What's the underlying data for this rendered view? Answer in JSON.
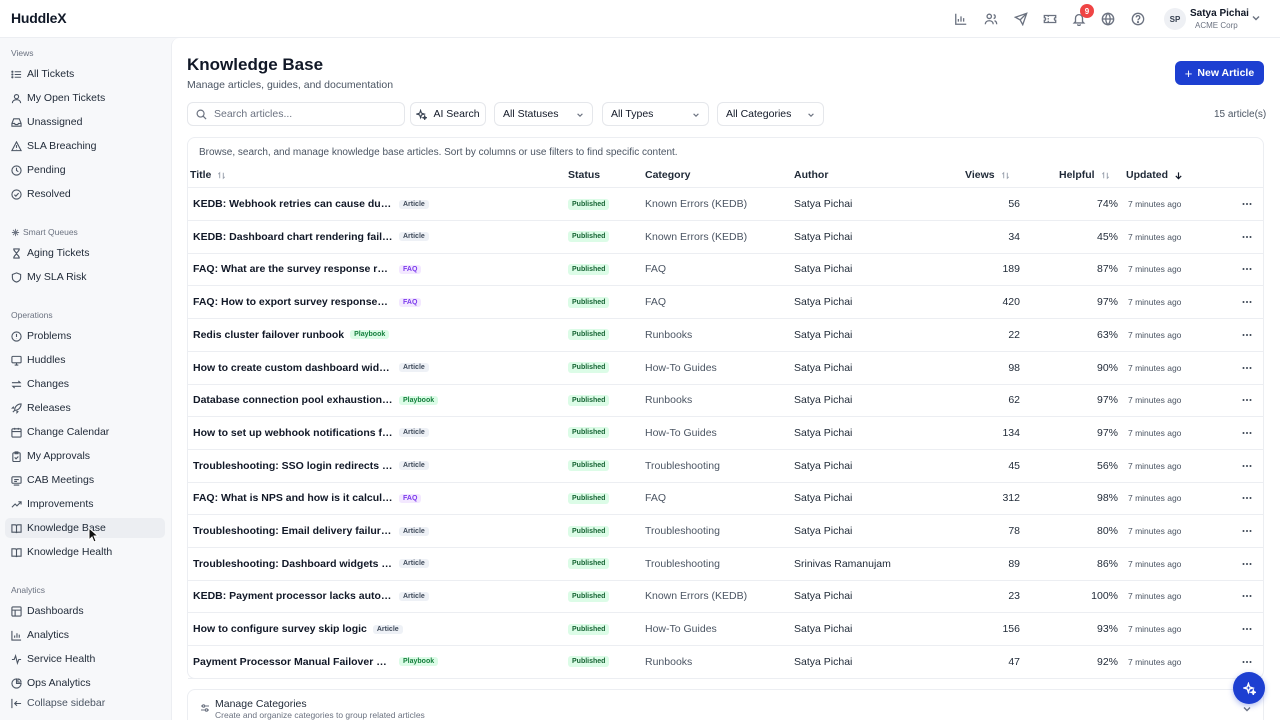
{
  "app": {
    "name": "HuddleX"
  },
  "topbar": {
    "notification_count": "9",
    "user": {
      "initials": "SP",
      "name": "Satya Pichai",
      "org": "ACME Corp"
    }
  },
  "sidebar": {
    "sections": [
      {
        "label": "Views",
        "items": [
          {
            "label": "All Tickets",
            "icon": "list-icon"
          },
          {
            "label": "My Open Tickets",
            "icon": "user-icon"
          },
          {
            "label": "Unassigned",
            "icon": "inbox-icon"
          },
          {
            "label": "SLA Breaching",
            "icon": "alert-icon"
          },
          {
            "label": "Pending",
            "icon": "clock-icon"
          },
          {
            "label": "Resolved",
            "icon": "check-circle-icon"
          }
        ]
      },
      {
        "label": "Smart Queues",
        "items": [
          {
            "label": "Aging Tickets",
            "icon": "hourglass-icon"
          },
          {
            "label": "My SLA Risk",
            "icon": "shield-icon"
          }
        ]
      },
      {
        "label": "Operations",
        "items": [
          {
            "label": "Problems",
            "icon": "problem-icon"
          },
          {
            "label": "Huddles",
            "icon": "monitor-icon"
          },
          {
            "label": "Changes",
            "icon": "swap-icon"
          },
          {
            "label": "Releases",
            "icon": "rocket-icon"
          },
          {
            "label": "Change Calendar",
            "icon": "calendar-icon"
          },
          {
            "label": "My Approvals",
            "icon": "clipboard-icon"
          },
          {
            "label": "CAB Meetings",
            "icon": "meeting-icon"
          },
          {
            "label": "Improvements",
            "icon": "trend-up-icon"
          },
          {
            "label": "Knowledge Base",
            "icon": "book-icon"
          },
          {
            "label": "Knowledge Health",
            "icon": "book-heart-icon"
          }
        ]
      },
      {
        "label": "Analytics",
        "items": [
          {
            "label": "Dashboards",
            "icon": "dashboard-icon"
          },
          {
            "label": "Analytics",
            "icon": "bar-chart-icon"
          },
          {
            "label": "Service Health",
            "icon": "activity-icon"
          },
          {
            "label": "Ops Analytics",
            "icon": "pie-icon"
          }
        ]
      }
    ],
    "active_item": "Knowledge Base",
    "collapse_label": "Collapse sidebar"
  },
  "page": {
    "title": "Knowledge Base",
    "subtitle": "Manage articles, guides, and documentation",
    "new_button": "New Article"
  },
  "toolbar": {
    "search_placeholder": "Search articles...",
    "ai_search": "AI Search",
    "filters": [
      "All Statuses",
      "All Types",
      "All Categories"
    ],
    "count": "15 article(s)"
  },
  "table": {
    "description": "Browse, search, and manage knowledge base articles. Sort by columns or use filters to find specific content.",
    "columns": [
      "Title",
      "Status",
      "Category",
      "Author",
      "Views",
      "Helpful",
      "Updated"
    ],
    "rows": [
      {
        "title": "KEDB: Webhook retries can cause duplicate events",
        "type": "Article",
        "status": "Published",
        "category": "Known Errors (KEDB)",
        "author": "Satya Pichai",
        "views": "56",
        "helpful": "74%",
        "updated": "7 minutes ago"
      },
      {
        "title": "KEDB: Dashboard chart rendering fails on large datasets",
        "type": "Article",
        "status": "Published",
        "category": "Known Errors (KEDB)",
        "author": "Satya Pichai",
        "views": "34",
        "helpful": "45%",
        "updated": "7 minutes ago"
      },
      {
        "title": "FAQ: What are the survey response rate benchmarks?",
        "type": "FAQ",
        "status": "Published",
        "category": "FAQ",
        "author": "Satya Pichai",
        "views": "189",
        "helpful": "87%",
        "updated": "7 minutes ago"
      },
      {
        "title": "FAQ: How to export survey responses to CSV?",
        "type": "FAQ",
        "status": "Published",
        "category": "FAQ",
        "author": "Satya Pichai",
        "views": "420",
        "helpful": "97%",
        "updated": "7 minutes ago"
      },
      {
        "title": "Redis cluster failover runbook",
        "type": "Playbook",
        "status": "Published",
        "category": "Runbooks",
        "author": "Satya Pichai",
        "views": "22",
        "helpful": "63%",
        "updated": "7 minutes ago"
      },
      {
        "title": "How to create custom dashboard widgets in HuddleX",
        "type": "Article",
        "status": "Published",
        "category": "How-To Guides",
        "author": "Satya Pichai",
        "views": "98",
        "helpful": "90%",
        "updated": "7 minutes ago"
      },
      {
        "title": "Database connection pool exhaustion recovery",
        "type": "Playbook",
        "status": "Published",
        "category": "Runbooks",
        "author": "Satya Pichai",
        "views": "62",
        "helpful": "97%",
        "updated": "7 minutes ago"
      },
      {
        "title": "How to set up webhook notifications for survey events",
        "type": "Article",
        "status": "Published",
        "category": "How-To Guides",
        "author": "Satya Pichai",
        "views": "134",
        "helpful": "97%",
        "updated": "7 minutes ago"
      },
      {
        "title": "Troubleshooting: SSO login redirects to blank page",
        "type": "Article",
        "status": "Published",
        "category": "Troubleshooting",
        "author": "Satya Pichai",
        "views": "45",
        "helpful": "56%",
        "updated": "7 minutes ago"
      },
      {
        "title": "FAQ: What is NPS and how is it calculated?",
        "type": "FAQ",
        "status": "Published",
        "category": "FAQ",
        "author": "Satya Pichai",
        "views": "312",
        "helpful": "98%",
        "updated": "7 minutes ago"
      },
      {
        "title": "Troubleshooting: Email delivery failures in notifications",
        "type": "Article",
        "status": "Published",
        "category": "Troubleshooting",
        "author": "Satya Pichai",
        "views": "78",
        "helpful": "80%",
        "updated": "7 minutes ago"
      },
      {
        "title": "Troubleshooting: Dashboard widgets not loading",
        "type": "Article",
        "status": "Published",
        "category": "Troubleshooting",
        "author": "Srinivas Ramanujam",
        "views": "89",
        "helpful": "86%",
        "updated": "7 minutes ago"
      },
      {
        "title": "KEDB: Payment processor lacks automatic failover",
        "type": "Article",
        "status": "Published",
        "category": "Known Errors (KEDB)",
        "author": "Satya Pichai",
        "views": "23",
        "helpful": "100%",
        "updated": "7 minutes ago"
      },
      {
        "title": "How to configure survey skip logic",
        "type": "Article",
        "status": "Published",
        "category": "How-To Guides",
        "author": "Satya Pichai",
        "views": "156",
        "helpful": "93%",
        "updated": "7 minutes ago"
      },
      {
        "title": "Payment Processor Manual Failover Runbook",
        "type": "Playbook",
        "status": "Published",
        "category": "Runbooks",
        "author": "Satya Pichai",
        "views": "47",
        "helpful": "92%",
        "updated": "7 minutes ago"
      }
    ]
  },
  "manage_categories": {
    "title": "Manage Categories",
    "subtitle": "Create and organize categories to group related articles"
  }
}
